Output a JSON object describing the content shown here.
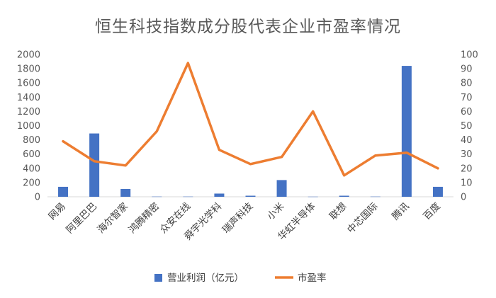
{
  "chart_data": {
    "type": "bar+line",
    "title": "恒生科技指数成分股代表企业市盈率情况",
    "categories": [
      "网易",
      "阿里巴巴",
      "海尔智家",
      "鸿腾精密",
      "众安在线",
      "舜宇光学科",
      "瑞声科技",
      "小米",
      "华虹半导体",
      "联想",
      "中芯国际",
      "腾讯",
      "百度"
    ],
    "series": [
      {
        "name": "营业利润（亿元）",
        "type": "bar",
        "axis": "left",
        "color": "#4472C4",
        "values": [
          140,
          890,
          110,
          3,
          3,
          45,
          15,
          235,
          2,
          15,
          3,
          1840,
          140
        ]
      },
      {
        "name": "市盈率",
        "type": "line",
        "axis": "right",
        "color": "#ED7D31",
        "values": [
          39,
          25,
          22,
          46,
          94,
          33,
          23,
          28,
          60,
          15,
          29,
          31,
          20
        ]
      }
    ],
    "y_left": {
      "min": 0,
      "max": 2000,
      "step": 200,
      "ticks": [
        "0",
        "200",
        "400",
        "600",
        "800",
        "1000",
        "1200",
        "1400",
        "1600",
        "1800",
        "2000"
      ]
    },
    "y_right": {
      "min": 0,
      "max": 100,
      "step": 10,
      "ticks": [
        "0",
        "10",
        "20",
        "30",
        "40",
        "50",
        "60",
        "70",
        "80",
        "90",
        "100"
      ]
    },
    "grid": false,
    "legend_position": "bottom"
  }
}
